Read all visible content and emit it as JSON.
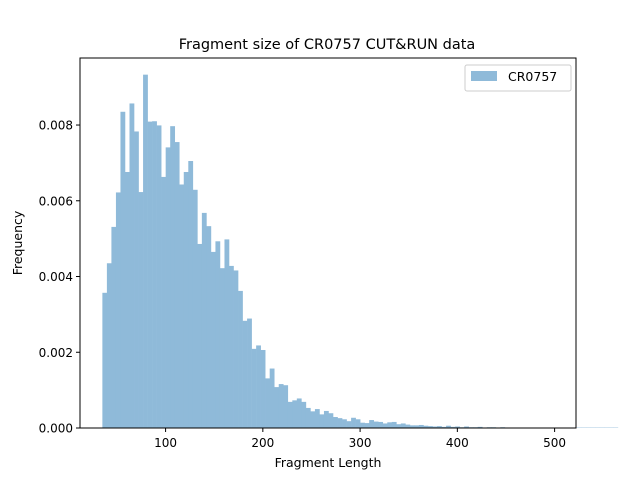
{
  "chart_data": {
    "type": "bar",
    "title": "Fragment size of CR0757 CUT&RUN data",
    "xlabel": "Fragment Length",
    "ylabel": "Frequency",
    "xlim": [
      12,
      522
    ],
    "ylim": [
      0,
      0.00977
    ],
    "xticks": [
      100,
      200,
      300,
      400,
      500
    ],
    "xtick_labels": [
      "100",
      "200",
      "300",
      "400",
      "500"
    ],
    "yticks": [
      0.0,
      0.002,
      0.004,
      0.006,
      0.008
    ],
    "ytick_labels": [
      "0.000",
      "0.002",
      "0.004",
      "0.006",
      "0.008"
    ],
    "grid": false,
    "legend": {
      "position": "top-right"
    },
    "series": [
      {
        "name": "CR0757",
        "color": "#8fbad9",
        "bin_start": 35,
        "bin_width": 4.65,
        "values": [
          0.00357,
          0.00435,
          0.00531,
          0.00622,
          0.00835,
          0.00676,
          0.00857,
          0.00783,
          0.00623,
          0.00933,
          0.00809,
          0.0081,
          0.00799,
          0.00663,
          0.00741,
          0.00797,
          0.00755,
          0.00643,
          0.00676,
          0.00705,
          0.00629,
          0.00486,
          0.00568,
          0.00533,
          0.00465,
          0.00493,
          0.00422,
          0.00498,
          0.00428,
          0.00416,
          0.00362,
          0.00283,
          0.00289,
          0.00209,
          0.00218,
          0.00206,
          0.00131,
          0.00157,
          0.00108,
          0.00116,
          0.00113,
          0.00069,
          0.00073,
          0.00078,
          0.00069,
          0.00053,
          0.00044,
          0.0005,
          0.00036,
          0.00045,
          0.00039,
          0.00029,
          0.00026,
          0.00023,
          0.00018,
          0.00027,
          0.00023,
          0.00014,
          0.00013,
          0.00021,
          0.00017,
          0.00016,
          0.00012,
          0.00015,
          0.00016,
          0.0001,
          0.00012,
          9e-05,
          7e-05,
          7e-05,
          8e-05,
          6e-05,
          5e-05,
          4e-05,
          5e-05,
          3e-05,
          6e-05,
          3e-05,
          4e-05,
          2e-05,
          4e-05,
          2e-05,
          2e-05,
          3e-05,
          1e-05,
          2e-05,
          2e-05,
          1e-05,
          2e-05,
          1e-05,
          1e-05,
          1e-05,
          1e-05,
          1e-05,
          1e-05,
          1e-05,
          1e-05,
          1e-05,
          1e-05,
          1e-05,
          1e-05,
          1e-05,
          1e-05,
          1e-05,
          1e-05,
          1e-05,
          1e-05,
          1e-05,
          1e-05,
          1e-05,
          1e-05,
          1e-05,
          1e-05,
          1e-05
        ]
      }
    ]
  }
}
